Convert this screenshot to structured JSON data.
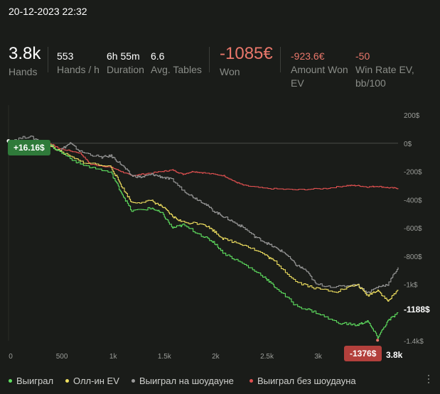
{
  "datetime": "20-12-2023 22:32",
  "stats": {
    "hands": {
      "value": "3.8k",
      "label": "Hands"
    },
    "hands_per_hour": {
      "value": "553",
      "label": "Hands / h"
    },
    "duration": {
      "value": "6h 55m",
      "label": "Duration"
    },
    "avg_tables": {
      "value": "6.6",
      "label": "Avg. Tables"
    },
    "won": {
      "value": "-1085€",
      "label": "Won"
    },
    "amount_won_ev": {
      "value": "-923.6€",
      "label_line1": "Amount Won",
      "label_line2": "EV"
    },
    "win_rate_ev": {
      "value": "-50",
      "label_line1": "Win Rate EV,",
      "label_line2": "bb/100"
    }
  },
  "chart_data": {
    "type": "line",
    "x_ticks": [
      "0",
      "500",
      "1k",
      "1.5k",
      "2k",
      "2.5k",
      "3k"
    ],
    "y_ticks": [
      "200$",
      "0$",
      "-200$",
      "-400$",
      "-600$",
      "-800$",
      "-1k$",
      "-1.2k$",
      "-1.4k$"
    ],
    "x_range": [
      0,
      3800
    ],
    "y_range": [
      -1400,
      200
    ],
    "colors": {
      "won": "#5fe060",
      "allin_ev": "#f0e060",
      "showdown": "#9a9a9a",
      "non_showdown": "#e05050"
    },
    "series": [
      {
        "key": "won",
        "name": "Выиграл",
        "x": [
          0,
          200,
          350,
          500,
          700,
          1000,
          1100,
          1200,
          1400,
          1500,
          1600,
          1700,
          1900,
          2000,
          2100,
          2300,
          2500,
          2600,
          2800,
          3000,
          3200,
          3400,
          3500,
          3600,
          3700,
          3800
        ],
        "y": [
          16,
          -10,
          10,
          -60,
          -150,
          -210,
          -350,
          -480,
          -460,
          -500,
          -600,
          -580,
          -660,
          -700,
          -780,
          -860,
          -950,
          -1020,
          -1150,
          -1200,
          -1270,
          -1290,
          -1260,
          -1376,
          -1260,
          -1200
        ]
      },
      {
        "key": "allin_ev",
        "name": "Олл-ин EV",
        "x": [
          0,
          200,
          350,
          500,
          700,
          1000,
          1100,
          1200,
          1400,
          1500,
          1600,
          1700,
          1900,
          2000,
          2100,
          2300,
          2500,
          2600,
          2800,
          3000,
          3200,
          3400,
          3500,
          3600,
          3700,
          3800
        ],
        "y": [
          16,
          -10,
          10,
          -60,
          -130,
          -170,
          -300,
          -420,
          -410,
          -450,
          -520,
          -560,
          -570,
          -620,
          -680,
          -720,
          -790,
          -840,
          -980,
          -1030,
          -1050,
          -1000,
          -1080,
          -1040,
          -1120,
          -1040
        ]
      },
      {
        "key": "showdown",
        "name": "Выиграл на шоудауне",
        "x": [
          0,
          200,
          350,
          500,
          600,
          700,
          900,
          1000,
          1100,
          1200,
          1300,
          1400,
          1500,
          1600,
          1700,
          1800,
          1900,
          2000,
          2100,
          2200,
          2300,
          2400,
          2500,
          2600,
          2700,
          2800,
          2900,
          3000,
          3200,
          3400,
          3500,
          3600,
          3700,
          3800
        ],
        "y": [
          16,
          50,
          0,
          -50,
          0,
          -60,
          -100,
          -90,
          -150,
          -230,
          -240,
          -220,
          -240,
          -260,
          -330,
          -380,
          -420,
          -480,
          -520,
          -560,
          -600,
          -660,
          -700,
          -740,
          -780,
          -860,
          -900,
          -1000,
          -1020,
          -1000,
          -1060,
          -1020,
          -1000,
          -880
        ]
      },
      {
        "key": "non_showdown",
        "name": "Выиграл без шоудауна",
        "x": [
          0,
          200,
          400,
          500,
          700,
          800,
          1000,
          1100,
          1200,
          1300,
          1500,
          1600,
          1700,
          1800,
          1900,
          2100,
          2200,
          2300,
          2500,
          2800,
          3100,
          3300,
          3400,
          3500,
          3600,
          3700,
          3800
        ],
        "y": [
          16,
          0,
          0,
          -40,
          -70,
          -150,
          -170,
          -200,
          -230,
          -220,
          -200,
          -190,
          -220,
          -200,
          -210,
          -230,
          -270,
          -300,
          -320,
          -330,
          -320,
          -300,
          -300,
          -310,
          -305,
          -315,
          -320
        ]
      }
    ],
    "markers": {
      "start": "+16.16$",
      "end": "-1188$",
      "min": "-1376$",
      "hands": "3.8k"
    },
    "legend_position": "bottom",
    "grid": false
  },
  "legend": {
    "items": [
      "Выиграл",
      "Олл-ин EV",
      "Выиграл на шоудауне",
      "Выиграл без шоудауна"
    ]
  }
}
